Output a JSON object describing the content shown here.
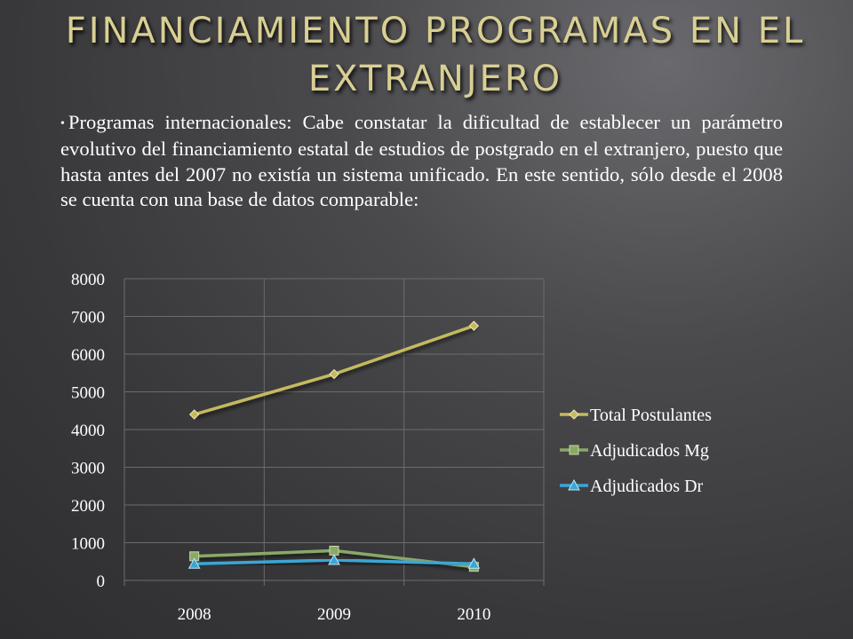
{
  "title": "FINANCIAMIENTO PROGRAMAS EN EL EXTRANJERO",
  "bullet": "•",
  "paragraph": "Programas internacionales: Cabe constatar la dificultad de establecer un parámetro evolutivo del financiamiento estatal de estudios de postgrado en el extranjero, puesto que hasta antes del 2007 no existía un sistema unificado. En este sentido, sólo desde el 2008 se cuenta con una base de datos comparable:",
  "colors": {
    "title": "#d9cf93",
    "text": "#ffffff",
    "total_postulantes": "#c5b95e",
    "adjudicados_mg": "#8aa867",
    "adjudicados_dr": "#3aa6d5",
    "grid": "#6c6c6f"
  },
  "chart_data": {
    "type": "line",
    "title": "",
    "xlabel": "",
    "ylabel": "",
    "categories": [
      "2008",
      "2009",
      "2010"
    ],
    "ylim": [
      0,
      8000
    ],
    "yticks": [
      0,
      1000,
      2000,
      3000,
      4000,
      5000,
      6000,
      7000,
      8000
    ],
    "grid": true,
    "legend_position": "right",
    "series": [
      {
        "name": "Total Postulantes",
        "values": [
          4400,
          5470,
          6750
        ],
        "marker": "diamond",
        "color_key": "total_postulantes"
      },
      {
        "name": "Adjudicados Mg",
        "values": [
          640,
          790,
          360
        ],
        "marker": "square",
        "color_key": "adjudicados_mg"
      },
      {
        "name": "Adjudicados Dr",
        "values": [
          440,
          540,
          440
        ],
        "marker": "triangle",
        "color_key": "adjudicados_dr"
      }
    ]
  }
}
